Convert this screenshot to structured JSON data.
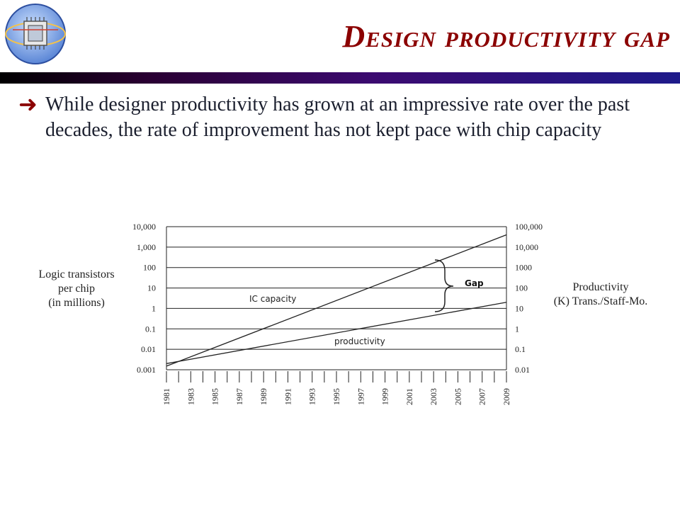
{
  "slide": {
    "title": "Design productivity gap",
    "bullet": "While designer productivity has grown at an impressive rate over the past decades, the rate of improvement has not kept pace with chip capacity",
    "bullet_icon": "arrow-right-icon",
    "logo_icon": "chip-globe-logo-icon",
    "title_color": "#8b0000"
  },
  "chart_data": {
    "type": "line",
    "x_ticks": [
      "1981",
      "1983",
      "1985",
      "1987",
      "1989",
      "1991",
      "1993",
      "1995",
      "1997",
      "1999",
      "2001",
      "2003",
      "2005",
      "2007",
      "2009"
    ],
    "xlim": [
      1981,
      2009
    ],
    "left_axis": {
      "label_lines": [
        "Logic transistors",
        "per chip",
        "(in millions)"
      ],
      "ticks": [
        "10,000",
        "1,000",
        "100",
        "10",
        "1",
        "0.1",
        "0.01",
        "0.001"
      ],
      "scale": "log",
      "ylim": [
        0.001,
        10000
      ]
    },
    "right_axis": {
      "label_lines": [
        "Productivity",
        "(K) Trans./Staff-Mo."
      ],
      "ticks": [
        "100,000",
        "10,000",
        "1000",
        "100",
        "10",
        "1",
        "0.1",
        "0.01"
      ],
      "scale": "log",
      "ylim": [
        0.01,
        100000
      ]
    },
    "grid": true,
    "series": [
      {
        "name": "IC capacity",
        "axis": "left",
        "x": [
          1981,
          2009
        ],
        "y": [
          0.0015,
          4000
        ]
      },
      {
        "name": "productivity",
        "axis": "right",
        "x": [
          1981,
          2009
        ],
        "y": [
          0.02,
          20
        ]
      }
    ],
    "annotations": {
      "gap": "Gap"
    }
  }
}
